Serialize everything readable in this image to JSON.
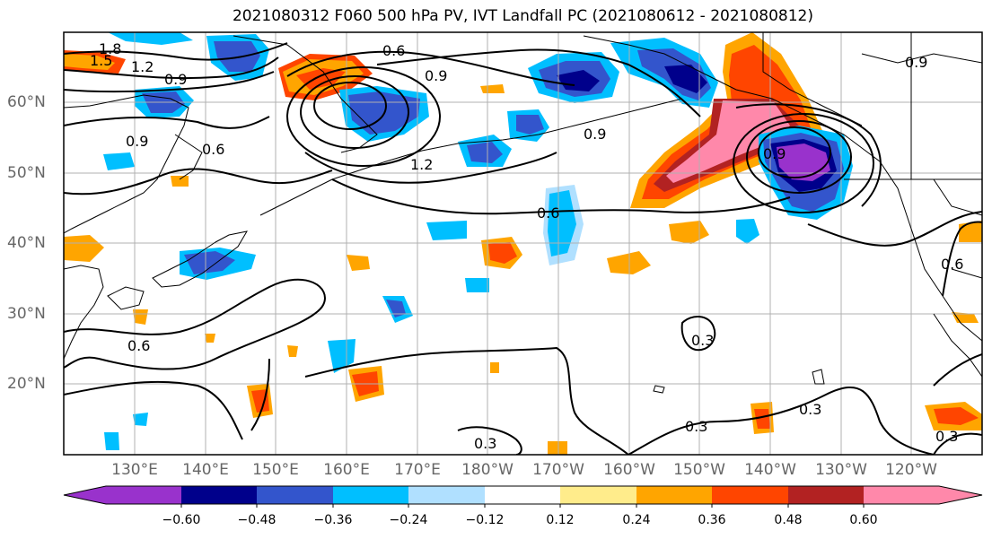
{
  "title": "2021080312 F060 500 hPa PV, IVT Landfall PC (2021080612 - 2021080812)",
  "lat_labels": [
    "60°N",
    "50°N",
    "40°N",
    "30°N",
    "20°N"
  ],
  "lon_labels": [
    "130°E",
    "140°E",
    "150°E",
    "160°E",
    "170°E",
    "180°W",
    "170°W",
    "160°W",
    "150°W",
    "140°W",
    "130°W",
    "120°W"
  ],
  "colorbar": {
    "ticks": [
      "−0.60",
      "−0.48",
      "−0.36",
      "−0.24",
      "−0.12",
      "0.12",
      "0.24",
      "0.36",
      "0.48",
      "0.60"
    ],
    "colors": [
      "#9932cc",
      "#00008b",
      "#3355cc",
      "#00bfff",
      "#b0e0ff",
      "#ffffff",
      "#ffec8b",
      "#ffa500",
      "#ff4500",
      "#b22222",
      "#ff88aa"
    ]
  },
  "contour_labels": [
    "1.8",
    "1.5",
    "1.2",
    "0.9",
    "0.6",
    "0.9",
    "1.2",
    "0.9",
    "0.6",
    "0.9",
    "0.6",
    "0.6",
    "0.3",
    "0.3",
    "0.3",
    "0.3",
    "0.3",
    "0.6",
    "0.9",
    "0.9"
  ]
}
